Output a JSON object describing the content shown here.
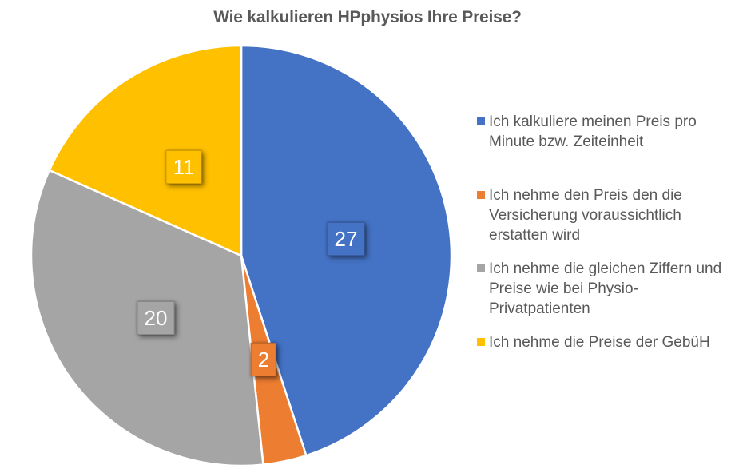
{
  "chart_data": {
    "type": "pie",
    "title": "Wie kalkulieren HPphysios Ihre Preise?",
    "total": 60,
    "start_angle_deg": 0,
    "direction": "clockwise",
    "legend_position": "right",
    "background": "#FFFFFF",
    "title_color": "#595959",
    "legend_text_color": "#595959",
    "data_label_text_color": "#FFFFFF",
    "slices": [
      {
        "label": "Ich kalkuliere meinen Preis pro Minute bzw. Zeiteinheit",
        "legend_lines": [
          "Ich kalkuliere meinen Preis pro",
          "Minute bzw. Zeiteinheit"
        ],
        "value": 27,
        "color": "#4472C4"
      },
      {
        "label": "Ich nehme den Preis den die Versicherung voraussichtlich erstatten wird",
        "legend_lines": [
          "Ich nehme den Preis den die",
          "Versicherung voraussichtlich",
          "erstatten wird"
        ],
        "value": 2,
        "color": "#ED7D31"
      },
      {
        "label": "Ich nehme die gleichen Ziffern und Preise wie bei Physio-Privatpatienten",
        "legend_lines": [
          "Ich nehme die gleichen Ziffern und",
          "Preise wie bei Physio-",
          "Privatpatienten"
        ],
        "value": 20,
        "color": "#A5A5A5"
      },
      {
        "label": "Ich nehme die Preise der GebüH",
        "legend_lines": [
          "Ich nehme die Preise der GebüH"
        ],
        "value": 11,
        "color": "#FFC000"
      }
    ]
  }
}
